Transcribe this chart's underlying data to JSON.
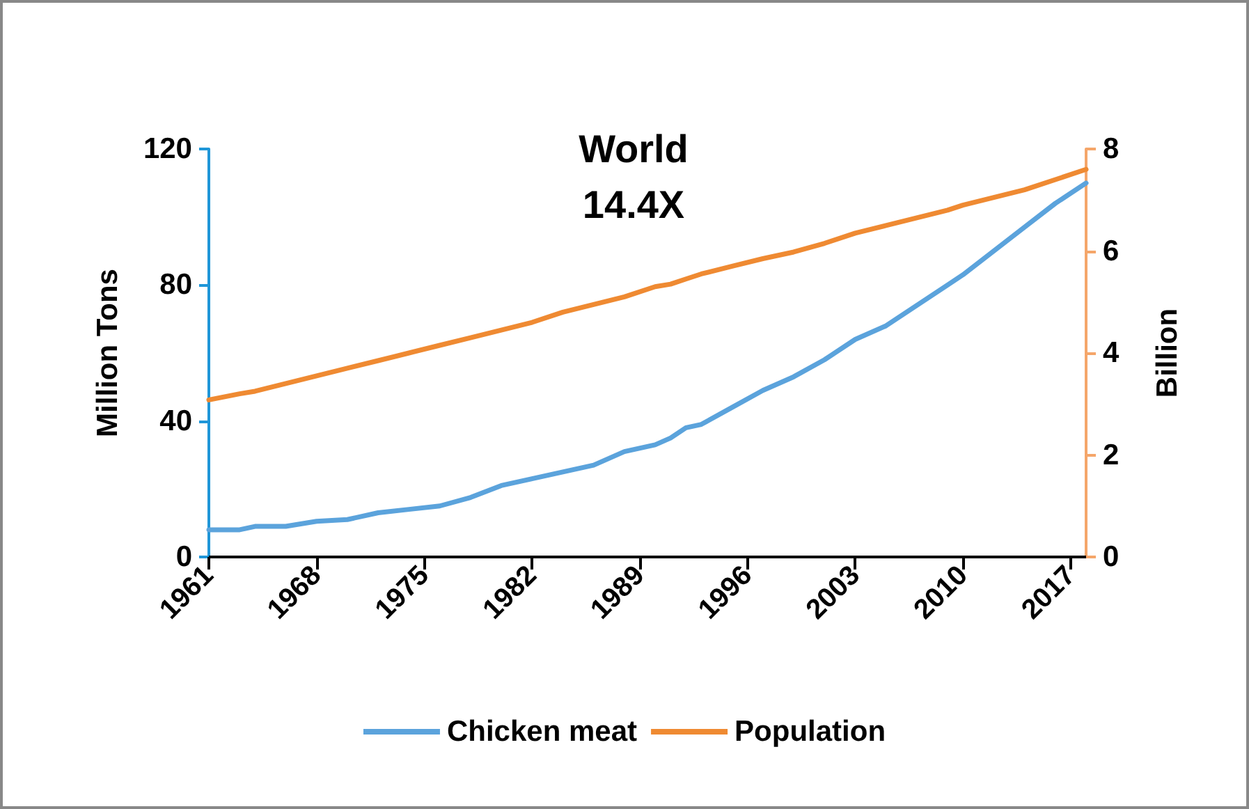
{
  "chart_data": {
    "type": "line",
    "title": "World\n14.4X",
    "ylabel": "Million Tons",
    "y2label": "Billion",
    "x": [
      1961,
      1963,
      1964,
      1966,
      1968,
      1970,
      1972,
      1974,
      1976,
      1978,
      1980,
      1982,
      1984,
      1986,
      1988,
      1990,
      1991,
      1992,
      1993,
      1995,
      1997,
      1999,
      2001,
      2003,
      2005,
      2007,
      2009,
      2010,
      2012,
      2014,
      2016,
      2018
    ],
    "series": [
      {
        "name": "Chicken meat",
        "color": "#5ba3dc",
        "values": [
          8,
          8,
          9,
          9,
          10.5,
          11,
          13,
          14,
          15,
          17.5,
          21,
          23,
          25,
          27,
          31,
          33,
          35,
          38,
          39,
          44,
          49,
          53,
          58,
          64,
          68,
          74,
          80,
          83,
          90,
          97,
          104,
          110
        ]
      },
      {
        "name": "Population",
        "color": "#ef8a32",
        "axis": "y2",
        "values": [
          3.08,
          3.2,
          3.25,
          3.4,
          3.55,
          3.7,
          3.85,
          4.0,
          4.15,
          4.3,
          4.45,
          4.6,
          4.8,
          4.95,
          5.1,
          5.3,
          5.35,
          5.45,
          5.55,
          5.7,
          5.85,
          5.98,
          6.15,
          6.35,
          6.5,
          6.65,
          6.8,
          6.9,
          7.05,
          7.2,
          7.4,
          7.6
        ]
      }
    ],
    "xlim": [
      1961,
      2018
    ],
    "xticks": [
      1961,
      1968,
      1975,
      1982,
      1989,
      1996,
      2003,
      2010,
      2017
    ],
    "ylim": [
      0,
      120
    ],
    "yticks": [
      0,
      40,
      80,
      120
    ],
    "y2lim": [
      0,
      8
    ],
    "y2ticks": [
      0,
      2,
      4,
      6,
      8
    ],
    "legend": "bottom",
    "grid": false,
    "marker": "none",
    "line_style": "solid"
  }
}
